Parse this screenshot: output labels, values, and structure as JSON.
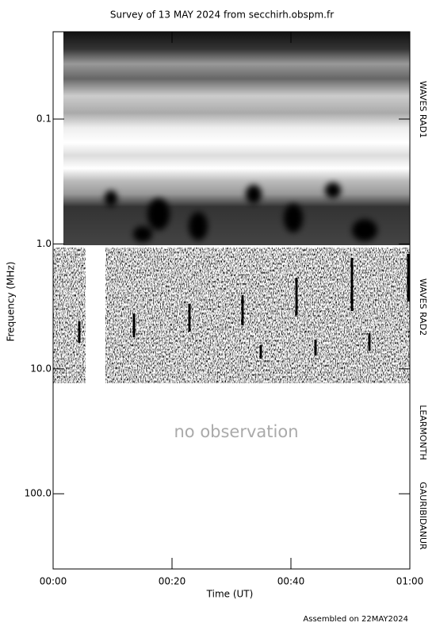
{
  "chart_data": {
    "type": "spectrogram",
    "title": "Survey of 13 MAY 2024 from secchirh.obspm.fr",
    "xlabel": "Time (UT)",
    "ylabel": "Frequency (MHz)",
    "xlim": [
      0,
      60
    ],
    "xticks": [
      {
        "value": 0,
        "label": "00:00"
      },
      {
        "value": 20,
        "label": "00:20"
      },
      {
        "value": 40,
        "label": "00:40"
      },
      {
        "value": 60,
        "label": "01:00"
      }
    ],
    "ylim": [
      0.02,
      400
    ],
    "log_y": true,
    "y_inverted": true,
    "yticks": [
      0.1,
      {
        "value": 1,
        "label": "1.0"
      },
      {
        "value": 10,
        "label": "10.0"
      },
      {
        "value": 100,
        "label": "100.0"
      }
    ],
    "instruments": [
      "WAVES RAD1",
      "WAVES RAD2",
      "LEARMONTH",
      "GAURIBIDANUR"
    ],
    "annotation": "no observation",
    "footer": "Assembled on 22MAY2024"
  }
}
